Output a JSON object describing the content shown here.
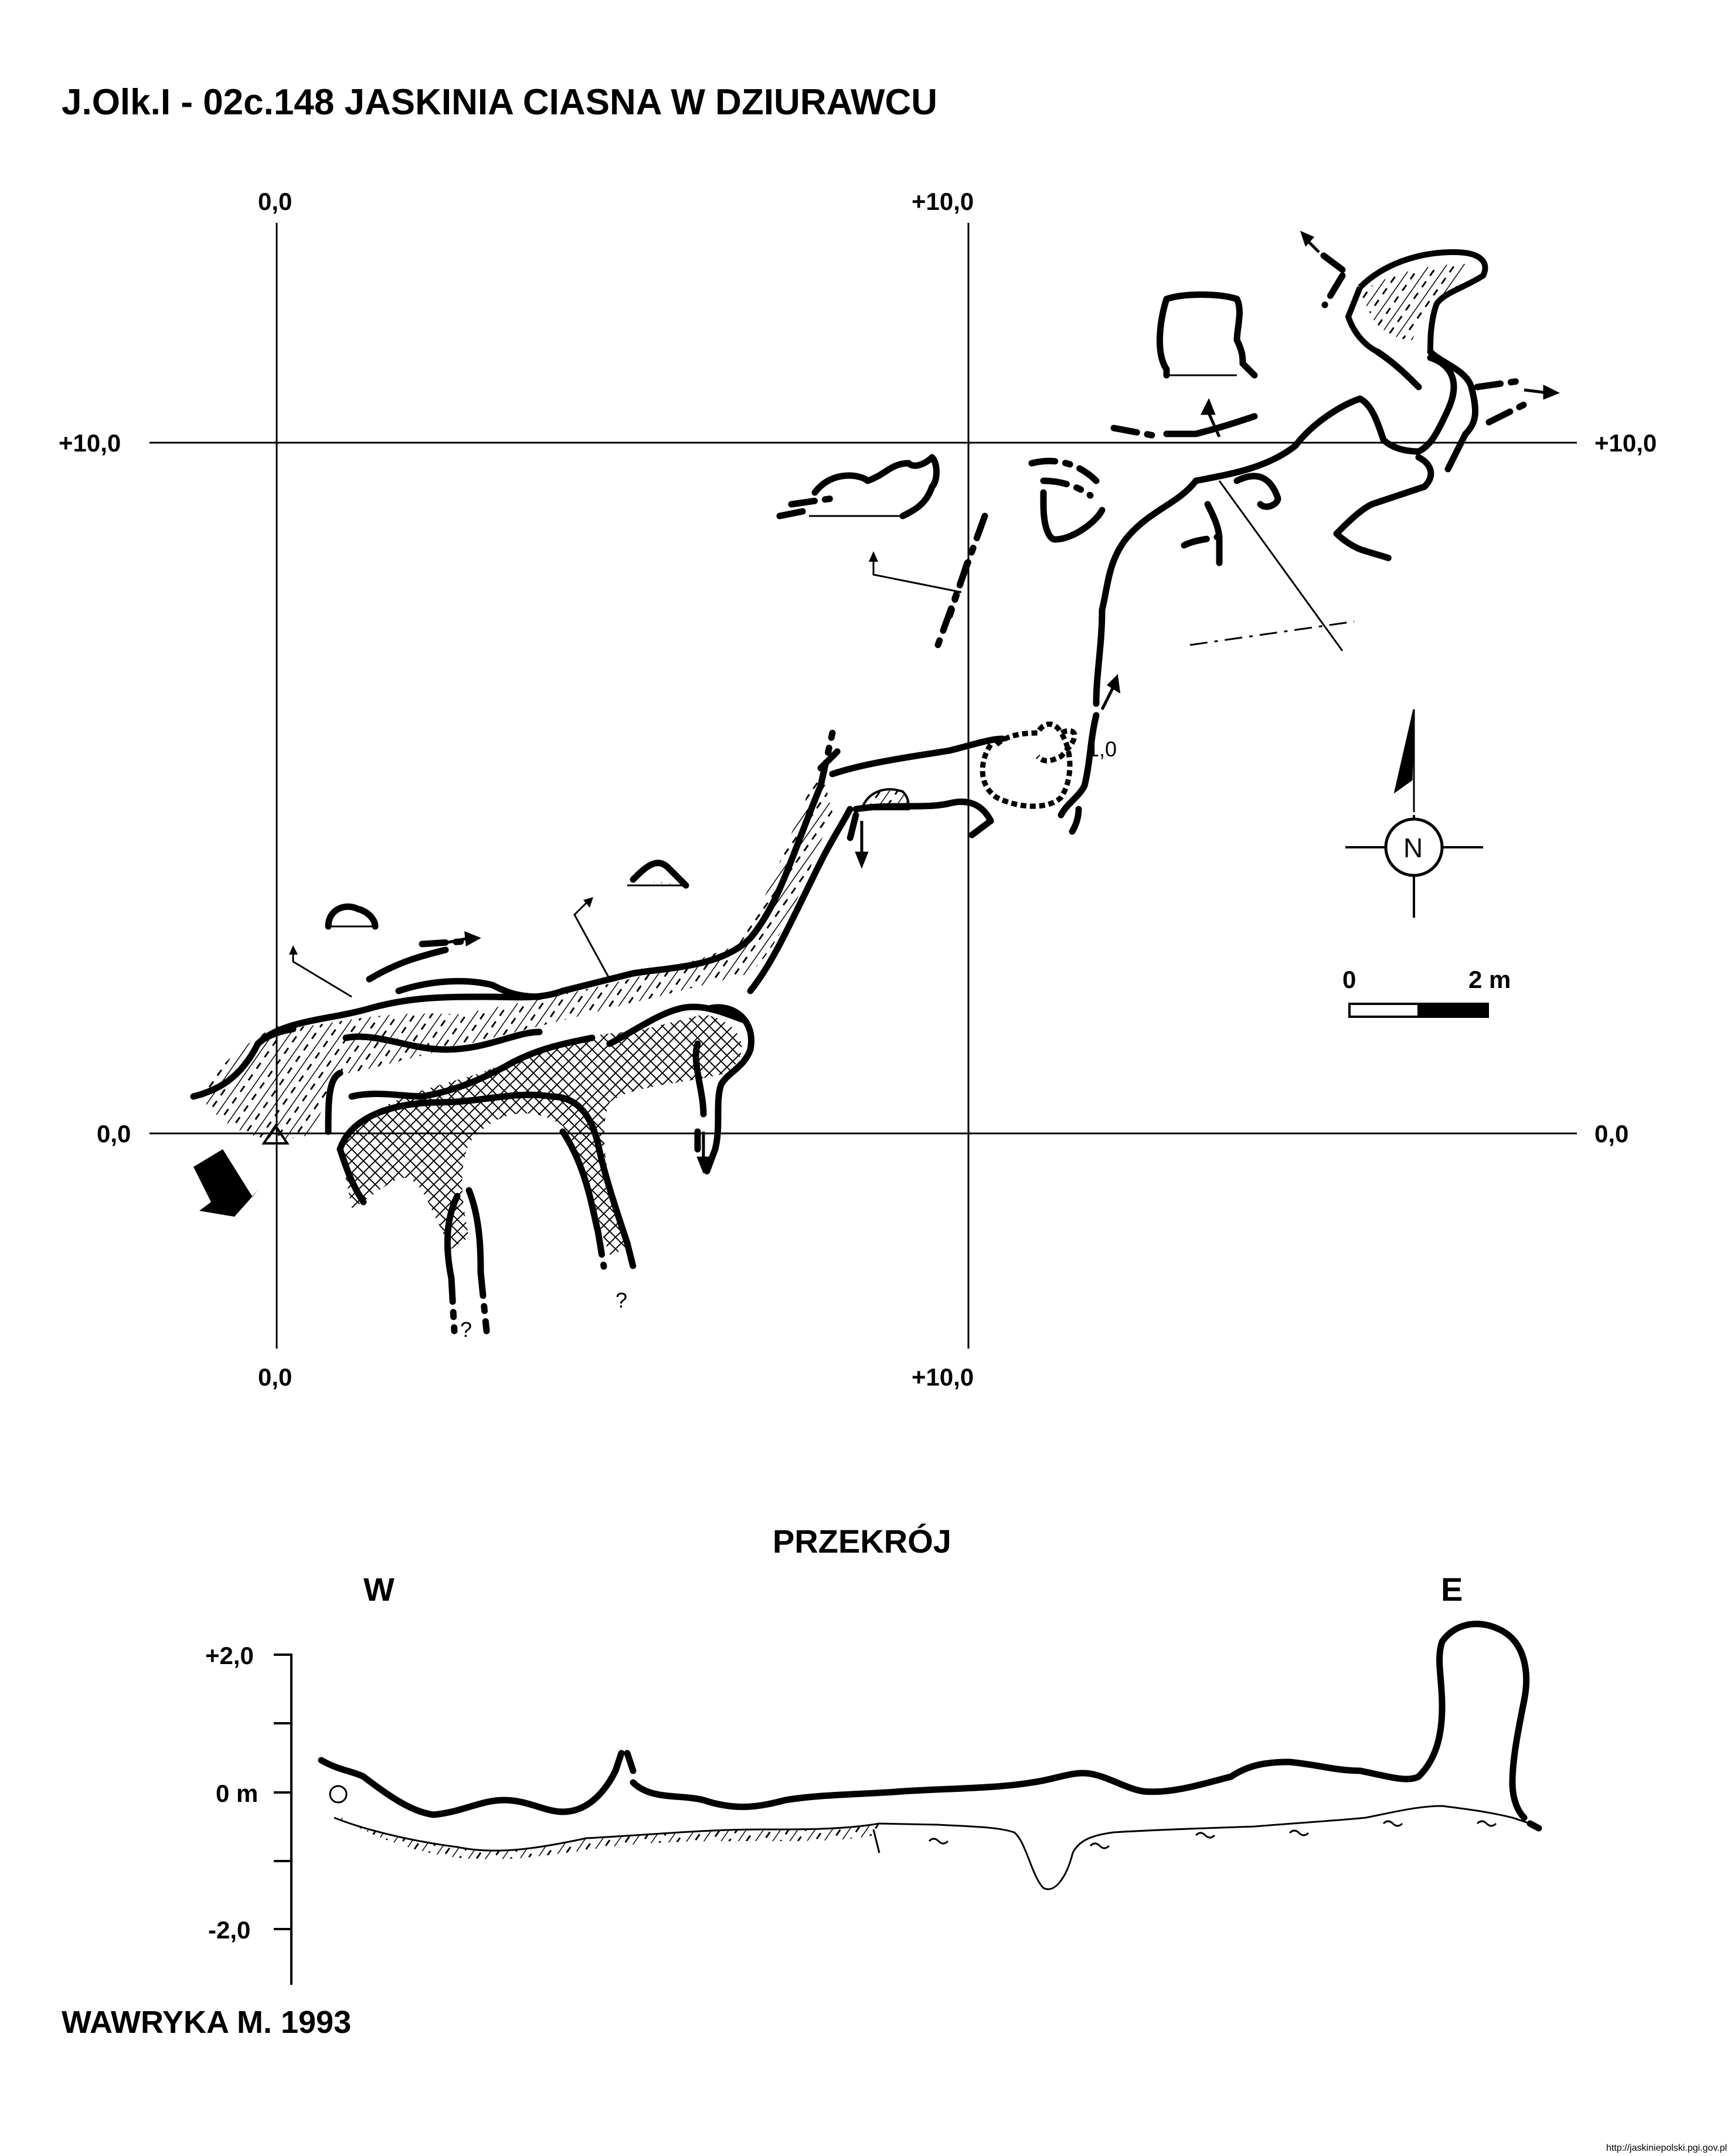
{
  "header": {
    "title": "J.Olk.I - 02c.148  JASKINIA CIASNA W DZIURAWCU"
  },
  "plan": {
    "grid_labels": {
      "top_left": "0,0",
      "top_right": "+10,0",
      "left_mid": "+10,0",
      "right_mid": "+10,0",
      "left_low": "0,0",
      "right_low": "0,0",
      "bottom_left": "0,0",
      "bottom_right": "+10,0"
    },
    "depth_mark": "1,0",
    "unknown_marks": [
      "?",
      "?"
    ],
    "north_label": "N",
    "scale": {
      "start": "0",
      "end": "2 m"
    }
  },
  "section": {
    "title": "PRZEKRÓJ",
    "west": "W",
    "east": "E",
    "y_labels": [
      "+2,0",
      "0 m",
      "-2,0"
    ]
  },
  "footer": {
    "author": "WAWRYKA M. 1993",
    "url": "http://jaskiniepolski.pgi.gov.pl"
  },
  "colors": {
    "ink": "#000000",
    "paper": "#ffffff"
  }
}
